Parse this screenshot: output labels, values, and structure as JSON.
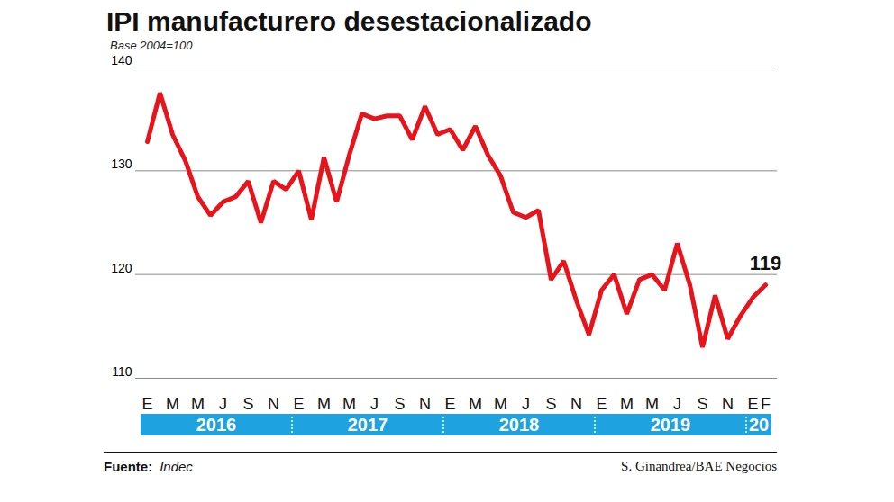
{
  "chart_data": {
    "type": "line",
    "title": "IPI manufacturero desestacionalizado",
    "subtitle": "Base 2004=100",
    "categories": [
      "E",
      null,
      "M",
      null,
      "M",
      null,
      "J",
      null,
      "S",
      null,
      "N",
      null,
      "E",
      null,
      "M",
      null,
      "M",
      null,
      "J",
      null,
      "S",
      null,
      "N",
      null,
      "E",
      null,
      "M",
      null,
      "M",
      null,
      "J",
      null,
      "S",
      null,
      "N",
      null,
      "E",
      null,
      "M",
      null,
      "M",
      null,
      "J",
      null,
      "S",
      null,
      "N",
      null,
      "E",
      "F"
    ],
    "values": [
      132.8,
      137.5,
      133.5,
      131,
      127.5,
      125.7,
      127,
      127.5,
      129,
      125,
      129,
      128.2,
      130,
      125.3,
      131.3,
      127,
      131.5,
      135.5,
      135,
      135.3,
      135.3,
      133,
      136.2,
      133.5,
      134,
      132,
      134.3,
      131.5,
      129.5,
      126,
      125.5,
      126.2,
      119.5,
      121.3,
      117.5,
      114.2,
      118.5,
      120,
      116.2,
      119.5,
      120,
      118.5,
      123,
      119,
      113,
      118,
      113.8,
      116,
      117.8,
      119
    ],
    "color": "#e8141b",
    "ylim": [
      110,
      140
    ],
    "yticks": [
      110,
      120,
      130,
      140
    ],
    "grid": true,
    "annotation": "119",
    "year_labels": [
      "2016",
      "2017",
      "2018",
      "2019",
      "20"
    ],
    "year_lengths": [
      12,
      12,
      12,
      12,
      2
    ],
    "source_label": "Fuente:",
    "source": "Indec",
    "credit": "S. Ginandrea/BAE Negocios"
  }
}
